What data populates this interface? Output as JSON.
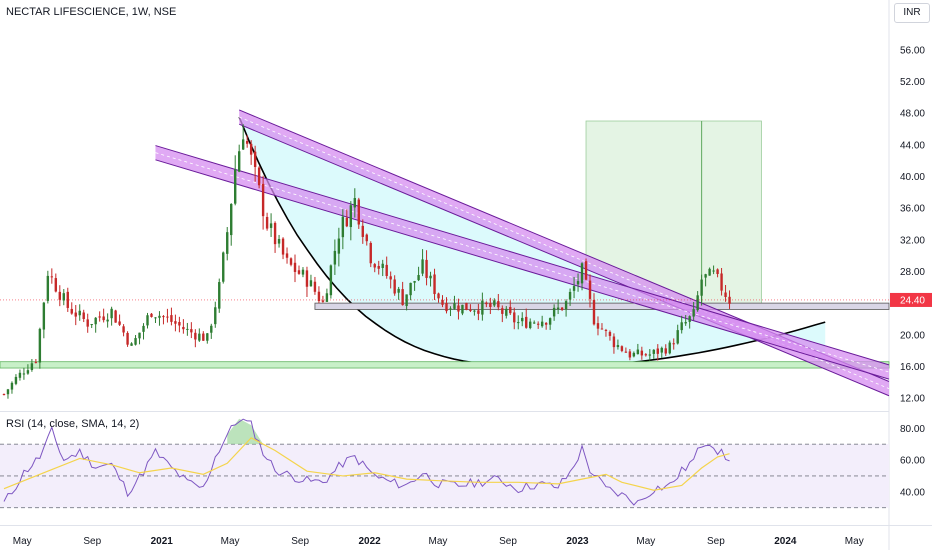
{
  "title": "NECTAR LIFESCIENCE, 1W, NSE",
  "currency": "INR",
  "rsi_title": "RSI (14, close, SMA, 14, 2)",
  "colors": {
    "up": "#2e7d32",
    "down": "#c62828",
    "channel": "#d58cf0",
    "channel_edge": "#6a1b9a",
    "cup_fill": "#d6f9fb",
    "support_band": "#c8f0c8",
    "target_zone": "#e4f4e4",
    "price_label": "#f23645",
    "rsi_line": "#7e57c2",
    "rsi_ma": "#f4d44c",
    "rsi_band": "#f3eefb"
  },
  "chart_data": [
    {
      "type": "candlestick",
      "title": "NECTAR LIFESCIENCE, 1W, NSE",
      "y_ticks": [
        "56.00",
        "52.00",
        "48.00",
        "44.00",
        "40.00",
        "36.00",
        "32.00",
        "28.00",
        "24.00",
        "20.00",
        "16.00",
        "12.00"
      ],
      "y_range": [
        10.5,
        59
      ],
      "x_range": [
        "2020-03-23",
        "2024-07-01"
      ],
      "x_ticks": [
        {
          "label": "May",
          "date": "2020-05-01",
          "year": false
        },
        {
          "label": "Sep",
          "date": "2020-09-01",
          "year": false
        },
        {
          "label": "2021",
          "date": "2021-01-01",
          "year": true
        },
        {
          "label": "May",
          "date": "2021-05-01",
          "year": false
        },
        {
          "label": "Sep",
          "date": "2021-09-01",
          "year": false
        },
        {
          "label": "2022",
          "date": "2022-01-01",
          "year": true
        },
        {
          "label": "May",
          "date": "2022-05-01",
          "year": false
        },
        {
          "label": "Sep",
          "date": "2022-09-01",
          "year": false
        },
        {
          "label": "2023",
          "date": "2023-01-01",
          "year": true
        },
        {
          "label": "May",
          "date": "2023-05-01",
          "year": false
        },
        {
          "label": "Sep",
          "date": "2023-09-01",
          "year": false
        },
        {
          "label": "2024",
          "date": "2024-01-01",
          "year": true
        },
        {
          "label": "May",
          "date": "2024-05-01",
          "year": false
        }
      ],
      "last_price": 24.4,
      "last_price_label": "24.40",
      "close_trajectory": [
        [
          "2020-03-30",
          12.5
        ],
        [
          "2020-04-20",
          14.5
        ],
        [
          "2020-05-25",
          17.0
        ],
        [
          "2020-06-15",
          28.0
        ],
        [
          "2020-07-20",
          23.5
        ],
        [
          "2020-08-24",
          21.5
        ],
        [
          "2020-10-05",
          23.0
        ],
        [
          "2020-11-09",
          18.5
        ],
        [
          "2020-12-14",
          23.0
        ],
        [
          "2021-01-11",
          22.0
        ],
        [
          "2021-02-15",
          20.5
        ],
        [
          "2021-03-22",
          19.5
        ],
        [
          "2021-04-12",
          26.0
        ],
        [
          "2021-04-26",
          33.0
        ],
        [
          "2021-05-10",
          41.0
        ],
        [
          "2021-05-24",
          46.0
        ],
        [
          "2021-06-14",
          40.0
        ],
        [
          "2021-07-05",
          34.0
        ],
        [
          "2021-08-09",
          29.0
        ],
        [
          "2021-09-13",
          27.0
        ],
        [
          "2021-10-11",
          24.0
        ],
        [
          "2021-11-08",
          33.0
        ],
        [
          "2021-12-06",
          37.0
        ],
        [
          "2022-01-03",
          30.0
        ],
        [
          "2022-01-31",
          27.5
        ],
        [
          "2022-02-28",
          24.5
        ],
        [
          "2022-04-04",
          28.5
        ],
        [
          "2022-05-09",
          24.0
        ],
        [
          "2022-06-13",
          23.5
        ],
        [
          "2022-08-08",
          23.5
        ],
        [
          "2022-09-19",
          21.5
        ],
        [
          "2022-11-07",
          22.0
        ],
        [
          "2022-12-12",
          24.0
        ],
        [
          "2023-01-09",
          28.0
        ],
        [
          "2023-01-30",
          22.0
        ],
        [
          "2023-03-06",
          19.0
        ],
        [
          "2023-04-03",
          17.5
        ],
        [
          "2023-05-08",
          17.5
        ],
        [
          "2023-06-12",
          18.5
        ],
        [
          "2023-07-03",
          21.0
        ],
        [
          "2023-07-24",
          22.5
        ],
        [
          "2023-08-07",
          27.0
        ],
        [
          "2023-08-28",
          27.5
        ],
        [
          "2023-09-11",
          26.0
        ],
        [
          "2023-09-25",
          24.4
        ]
      ]
    },
    {
      "type": "line",
      "title": "RSI (14, close, SMA, 14, 2)",
      "y_ticks": [
        "80.00",
        "60.00",
        "40.00"
      ],
      "y_range": [
        21,
        89
      ],
      "bands": [
        30,
        50,
        70
      ],
      "series": [
        {
          "name": "RSI",
          "values": [
            [
              "2020-03-30",
              33
            ],
            [
              "2020-04-13",
              40
            ],
            [
              "2020-05-04",
              52
            ],
            [
              "2020-06-01",
              62
            ],
            [
              "2020-06-22",
              78
            ],
            [
              "2020-07-13",
              60
            ],
            [
              "2020-08-10",
              65
            ],
            [
              "2020-09-07",
              56
            ],
            [
              "2020-10-05",
              57
            ],
            [
              "2020-11-02",
              40
            ],
            [
              "2020-11-23",
              49
            ],
            [
              "2020-12-21",
              65
            ],
            [
              "2021-01-18",
              55
            ],
            [
              "2021-02-15",
              46
            ],
            [
              "2021-03-15",
              42
            ],
            [
              "2021-04-05",
              62
            ],
            [
              "2021-04-26",
              76
            ],
            [
              "2021-05-17",
              86
            ],
            [
              "2021-06-07",
              82
            ],
            [
              "2021-06-28",
              65
            ],
            [
              "2021-07-19",
              54
            ],
            [
              "2021-08-16",
              50
            ],
            [
              "2021-09-13",
              47
            ],
            [
              "2021-10-11",
              46
            ],
            [
              "2021-11-15",
              58
            ],
            [
              "2021-12-06",
              62
            ],
            [
              "2022-01-10",
              50
            ],
            [
              "2022-02-07",
              46
            ],
            [
              "2022-03-07",
              44
            ],
            [
              "2022-04-04",
              52
            ],
            [
              "2022-05-02",
              45
            ],
            [
              "2022-06-06",
              44
            ],
            [
              "2022-07-11",
              46
            ],
            [
              "2022-08-15",
              48
            ],
            [
              "2022-09-19",
              42
            ],
            [
              "2022-10-24",
              45
            ],
            [
              "2022-11-28",
              43
            ],
            [
              "2022-12-19",
              52
            ],
            [
              "2023-01-09",
              67
            ],
            [
              "2023-01-23",
              54
            ],
            [
              "2023-02-20",
              42
            ],
            [
              "2023-03-20",
              38
            ],
            [
              "2023-04-17",
              33
            ],
            [
              "2023-05-15",
              42
            ],
            [
              "2023-06-12",
              44
            ],
            [
              "2023-07-03",
              53
            ],
            [
              "2023-07-24",
              60
            ],
            [
              "2023-08-07",
              70
            ],
            [
              "2023-08-21",
              72
            ],
            [
              "2023-09-04",
              66
            ],
            [
              "2023-09-18",
              62
            ],
            [
              "2023-09-25",
              58
            ]
          ]
        },
        {
          "name": "SMA",
          "values": [
            [
              "2020-03-30",
              42
            ],
            [
              "2020-05-04",
              47
            ],
            [
              "2020-06-22",
              54
            ],
            [
              "2020-08-10",
              61
            ],
            [
              "2020-10-05",
              57
            ],
            [
              "2020-11-23",
              52
            ],
            [
              "2021-01-18",
              55
            ],
            [
              "2021-03-15",
              51
            ],
            [
              "2021-04-26",
              58
            ],
            [
              "2021-06-07",
              74
            ],
            [
              "2021-07-19",
              66
            ],
            [
              "2021-09-13",
              53
            ],
            [
              "2021-11-15",
              50
            ],
            [
              "2022-01-10",
              52
            ],
            [
              "2022-03-07",
              48
            ],
            [
              "2022-05-02",
              47
            ],
            [
              "2022-07-11",
              46
            ],
            [
              "2022-09-19",
              46
            ],
            [
              "2022-11-28",
              45
            ],
            [
              "2023-01-09",
              48
            ],
            [
              "2023-02-20",
              51
            ],
            [
              "2023-03-20",
              46
            ],
            [
              "2023-05-15",
              41
            ],
            [
              "2023-07-03",
              44
            ],
            [
              "2023-08-07",
              55
            ],
            [
              "2023-09-04",
              62
            ],
            [
              "2023-09-25",
              64
            ]
          ]
        }
      ]
    }
  ]
}
